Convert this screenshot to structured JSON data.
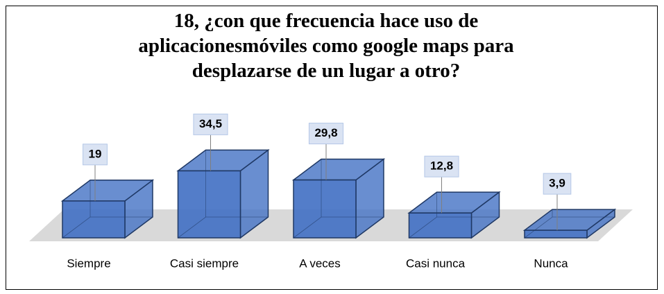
{
  "chart_data": {
    "type": "bar3d",
    "title": "18, ¿con que frecuencia hace uso de aplicacionesmóviles como google maps para desplazarse de un lugar a otro?",
    "categories": [
      "Siempre",
      "Casi siempre",
      "A veces",
      "Casi nunca",
      "Nunca"
    ],
    "values": [
      19,
      34.5,
      29.8,
      12.8,
      3.9
    ],
    "value_labels": [
      "19",
      "34,5",
      "29,8",
      "12,8",
      "3,9"
    ],
    "color": "#4472c4"
  }
}
